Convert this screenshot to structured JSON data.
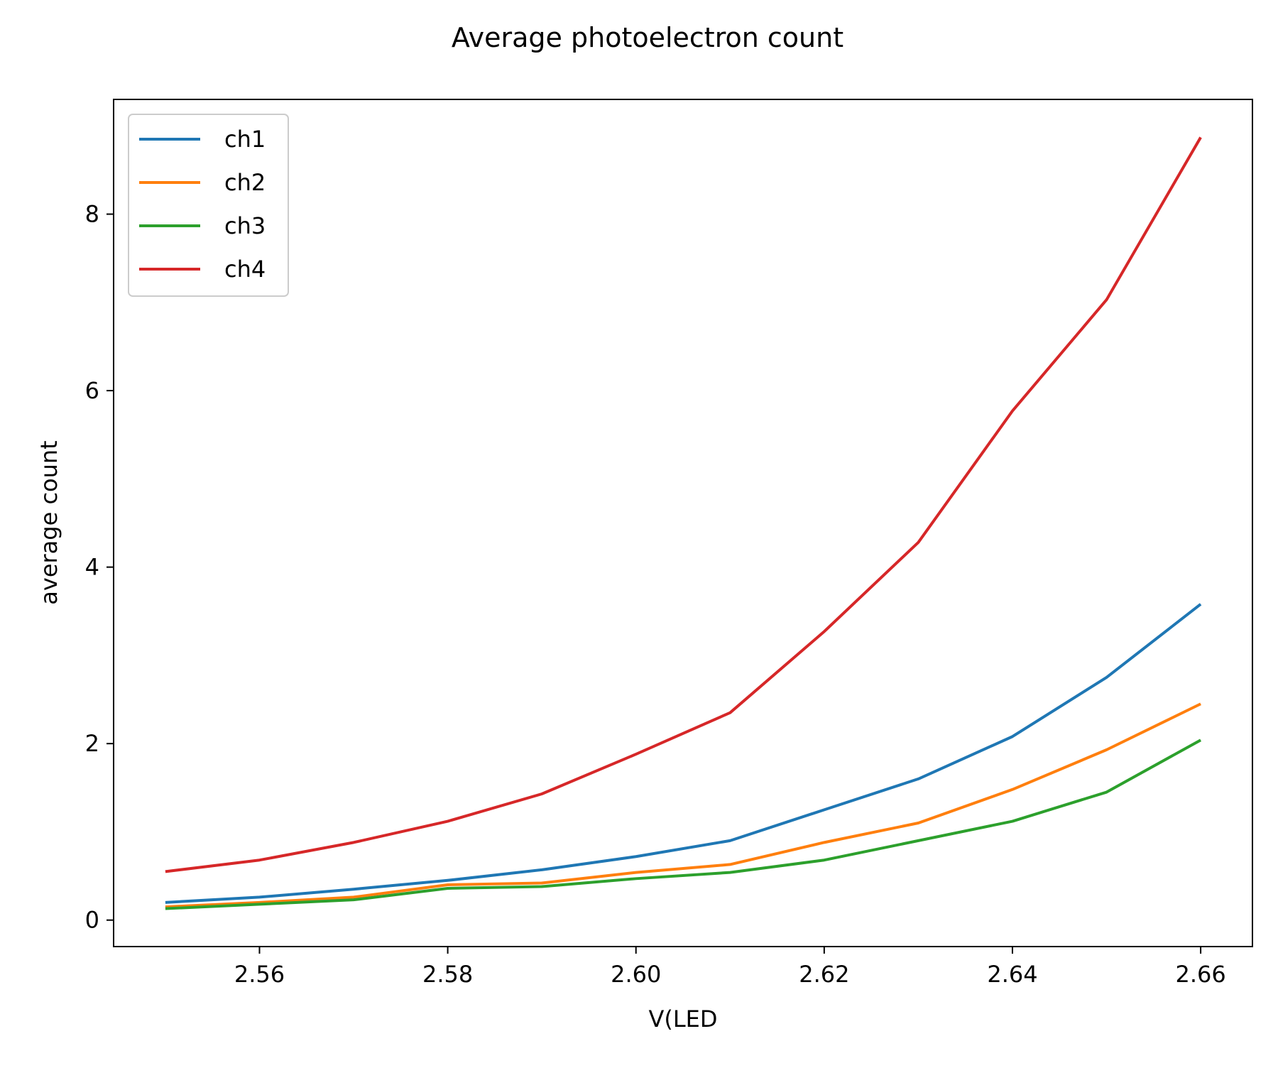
{
  "chart_data": {
    "type": "line",
    "title": "Average photoelectron count",
    "xlabel": "V(LED",
    "ylabel": "average count",
    "xlim": [
      2.5445,
      2.6655
    ],
    "ylim": [
      -0.3,
      9.3
    ],
    "xticks": [
      2.56,
      2.58,
      2.6,
      2.62,
      2.64,
      2.66
    ],
    "xtick_labels": [
      "2.56",
      "2.58",
      "2.60",
      "2.62",
      "2.64",
      "2.66"
    ],
    "yticks": [
      0,
      2,
      4,
      6,
      8
    ],
    "ytick_labels": [
      "0",
      "2",
      "4",
      "6",
      "8"
    ],
    "grid": false,
    "legend": "upper left",
    "x": [
      2.55,
      2.56,
      2.57,
      2.58,
      2.59,
      2.6,
      2.61,
      2.62,
      2.63,
      2.64,
      2.65,
      2.66
    ],
    "series": [
      {
        "name": "ch1",
        "color": "#1f77b4",
        "values": [
          0.2,
          0.26,
          0.35,
          0.45,
          0.57,
          0.72,
          0.9,
          1.25,
          1.6,
          2.08,
          2.75,
          3.58
        ]
      },
      {
        "name": "ch2",
        "color": "#ff7f0e",
        "values": [
          0.15,
          0.2,
          0.26,
          0.4,
          0.42,
          0.54,
          0.63,
          0.88,
          1.1,
          1.48,
          1.93,
          2.45
        ]
      },
      {
        "name": "ch3",
        "color": "#2ca02c",
        "values": [
          0.13,
          0.18,
          0.23,
          0.36,
          0.38,
          0.47,
          0.54,
          0.68,
          0.9,
          1.12,
          1.45,
          2.04
        ]
      },
      {
        "name": "ch4",
        "color": "#d62728",
        "values": [
          0.55,
          0.68,
          0.88,
          1.12,
          1.43,
          1.88,
          2.35,
          3.27,
          4.28,
          5.77,
          7.03,
          8.87
        ]
      }
    ]
  }
}
